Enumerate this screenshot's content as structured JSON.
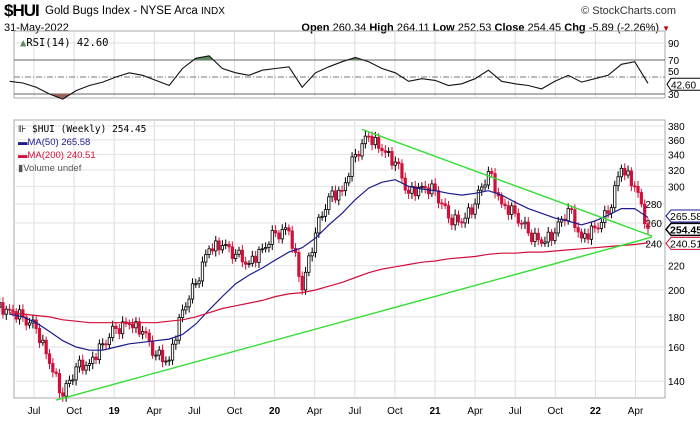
{
  "header": {
    "symbol": "$HUI",
    "name": "Gold Bugs Index - NYSE Arca",
    "exchange": "INDX",
    "copyright": "© StockCharts.com",
    "date": "31-May-2022",
    "open_label": "Open",
    "open": "260.34",
    "high_label": "High",
    "high": "264.11",
    "low_label": "Low",
    "low": "252.53",
    "close_label": "Close",
    "close": "254.45",
    "chg_label": "Chg",
    "chg": "-5.89 (-2.26%)",
    "down_arrow": "▼"
  },
  "colors": {
    "up": "#000000",
    "down": "#d0103a",
    "ma50": "#1a1a8c",
    "ma200": "#d0103a",
    "trend": "#33dd33",
    "rsi_over": "#5c8a5c",
    "rsi_under": "#a0605a"
  },
  "legend": {
    "price": "$HUI (Weekly) 254.45",
    "ma50": "MA(50) 265.58",
    "ma200": "MA(200) 240.51",
    "volume": "Volume undef",
    "rsi": "RSI(14) 42.60"
  },
  "chart_data": [
    {
      "type": "line",
      "title": "RSI(14)",
      "ylim": [
        10,
        100
      ],
      "yticks": [
        "90",
        "70",
        "50",
        "30"
      ],
      "last_value_label": "42.60",
      "x": [
        "2018-05",
        "2018-06",
        "2018-07",
        "2018-08",
        "2018-09",
        "2018-10",
        "2018-11",
        "2018-12",
        "2019-01",
        "2019-02",
        "2019-03",
        "2019-04",
        "2019-05",
        "2019-06",
        "2019-07",
        "2019-08",
        "2019-09",
        "2019-10",
        "2019-11",
        "2019-12",
        "2020-01",
        "2020-02",
        "2020-03",
        "2020-04",
        "2020-05",
        "2020-06",
        "2020-07",
        "2020-08",
        "2020-09",
        "2020-10",
        "2020-11",
        "2020-12",
        "2021-01",
        "2021-02",
        "2021-03",
        "2021-04",
        "2021-05",
        "2021-06",
        "2021-07",
        "2021-08",
        "2021-09",
        "2021-10",
        "2021-11",
        "2021-12",
        "2022-01",
        "2022-02",
        "2022-03",
        "2022-04",
        "2022-05"
      ],
      "values": [
        45,
        43,
        38,
        30,
        24,
        34,
        40,
        44,
        50,
        55,
        52,
        46,
        40,
        60,
        72,
        75,
        60,
        55,
        52,
        58,
        60,
        62,
        38,
        55,
        62,
        68,
        73,
        68,
        60,
        55,
        45,
        48,
        46,
        40,
        42,
        48,
        58,
        45,
        42,
        40,
        36,
        45,
        52,
        44,
        48,
        52,
        65,
        68,
        42.6
      ]
    },
    {
      "type": "candlestick",
      "title": "$HUI (Weekly)",
      "scale": "log",
      "ylim": [
        125,
        385
      ],
      "yticks": [
        "380",
        "360",
        "340",
        "320",
        "300",
        "280",
        "260",
        "240",
        "220",
        "200",
        "180",
        "160",
        "140"
      ],
      "xticks": [
        "Jul",
        "Oct",
        "19",
        "Apr",
        "Jul",
        "Oct",
        "20",
        "Apr",
        "Jul",
        "Oct",
        "21",
        "Apr",
        "Jul",
        "Oct",
        "22",
        "Apr"
      ],
      "price_labels": {
        "ma50": "265.58",
        "close": "254.45",
        "ma200": "240.51"
      },
      "x": [
        "2018-05",
        "2018-06",
        "2018-07",
        "2018-08",
        "2018-09",
        "2018-10",
        "2018-11",
        "2018-12",
        "2019-01",
        "2019-02",
        "2019-03",
        "2019-04",
        "2019-05",
        "2019-06",
        "2019-07",
        "2019-08",
        "2019-09",
        "2019-10",
        "2019-11",
        "2019-12",
        "2020-01",
        "2020-02",
        "2020-03",
        "2020-04",
        "2020-05",
        "2020-06",
        "2020-07",
        "2020-08",
        "2020-09",
        "2020-10",
        "2020-11",
        "2020-12",
        "2021-01",
        "2021-02",
        "2021-03",
        "2021-04",
        "2021-05",
        "2021-06",
        "2021-07",
        "2021-08",
        "2021-09",
        "2021-10",
        "2021-11",
        "2021-12",
        "2022-01",
        "2022-02",
        "2022-03",
        "2022-04",
        "2022-05"
      ],
      "series": [
        {
          "name": "Close",
          "values": [
            185,
            180,
            172,
            150,
            132,
            148,
            150,
            162,
            172,
            175,
            170,
            155,
            152,
            185,
            205,
            235,
            238,
            230,
            222,
            235,
            250,
            252,
            200,
            250,
            288,
            295,
            340,
            365,
            345,
            330,
            292,
            300,
            295,
            265,
            260,
            280,
            318,
            280,
            270,
            250,
            240,
            250,
            275,
            245,
            255,
            270,
            322,
            300,
            254.45
          ]
        },
        {
          "name": "MA(50)",
          "values": [
            182,
            180,
            176,
            170,
            164,
            160,
            158,
            158,
            160,
            162,
            163,
            164,
            165,
            168,
            175,
            185,
            195,
            205,
            212,
            218,
            225,
            232,
            236,
            245,
            258,
            270,
            285,
            298,
            305,
            308,
            300,
            297,
            295,
            292,
            290,
            292,
            295,
            290,
            282,
            275,
            270,
            265,
            262,
            258,
            262,
            268,
            275,
            275,
            265.58
          ]
        },
        {
          "name": "MA(200)",
          "values": [
            183,
            182,
            181,
            180,
            178,
            177,
            176,
            176,
            176,
            176,
            176,
            176,
            177,
            178,
            180,
            183,
            186,
            188,
            190,
            192,
            195,
            197,
            198,
            200,
            203,
            206,
            210,
            214,
            217,
            219,
            221,
            223,
            224,
            226,
            227,
            228,
            230,
            231,
            231,
            232,
            232,
            233,
            234,
            235,
            236,
            237,
            238,
            239,
            240.51
          ]
        },
        {
          "name": "Trendline support",
          "values": [
            [
              "2018-09",
              130
            ],
            [
              "2022-05",
              246
            ]
          ]
        },
        {
          "name": "Trendline resistance",
          "values": [
            [
              "2020-08",
              375
            ],
            [
              "2022-05",
              247
            ]
          ]
        }
      ]
    }
  ]
}
